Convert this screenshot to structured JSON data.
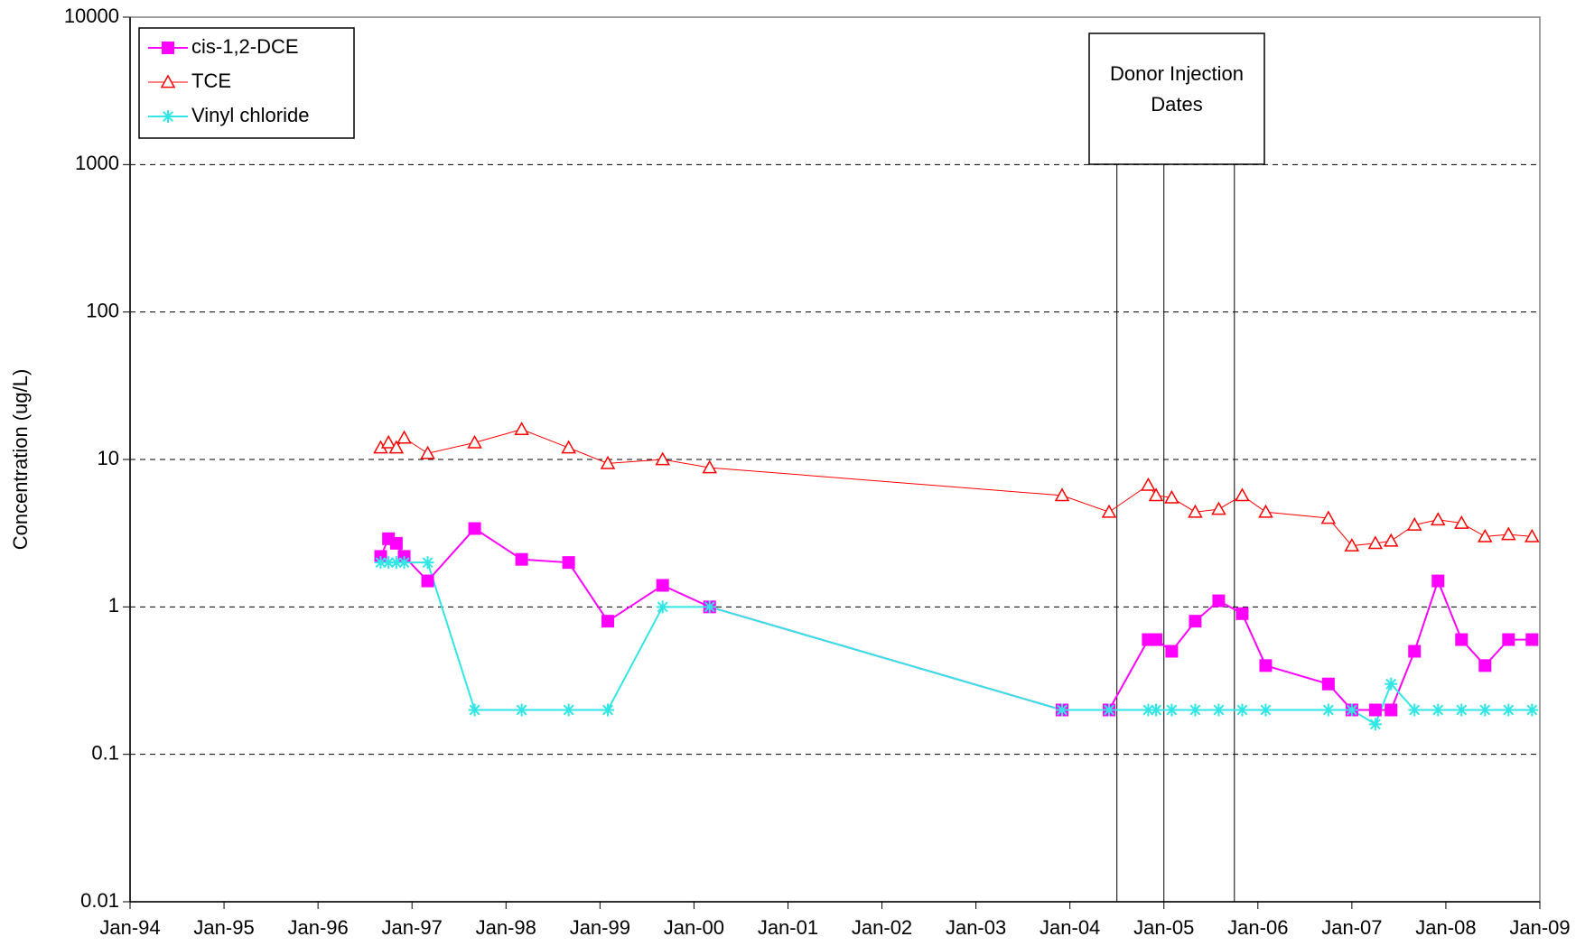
{
  "chart_data": {
    "type": "line",
    "y_label": "Concentration (ug/L)",
    "log_scale": true,
    "grid": true,
    "legend": "upper left",
    "x": [
      "1996-09",
      "1996-10",
      "1996-11",
      "1996-12",
      "1997-03",
      "1997-09",
      "1998-03",
      "1998-09",
      "1999-02",
      "1999-09",
      "2000-03",
      "2003-12",
      "2004-06",
      "2004-11",
      "2004-12",
      "2005-02",
      "2005-05",
      "2005-08",
      "2005-11",
      "2006-02",
      "2006-10",
      "2007-01",
      "2007-04",
      "2007-06",
      "2007-09",
      "2007-12",
      "2008-03",
      "2008-06",
      "2008-09",
      "2008-12"
    ],
    "series": [
      {
        "name": "cis-1,2-DCE",
        "color": "#ff00ff",
        "marker": "square",
        "values": [
          2.2,
          2.9,
          2.7,
          2.2,
          1.5,
          3.4,
          2.1,
          2.0,
          0.8,
          1.4,
          1.0,
          0.2,
          0.2,
          0.6,
          0.6,
          0.5,
          0.8,
          1.1,
          0.9,
          0.4,
          0.3,
          0.2,
          0.2,
          0.2,
          0.5,
          1.5,
          0.6,
          0.4,
          0.6,
          0.6
        ]
      },
      {
        "name": "TCE",
        "color": "#ff0000",
        "marker": "triangle",
        "values": [
          12,
          13,
          12,
          14,
          11,
          13,
          16,
          12,
          9.4,
          10,
          8.8,
          5.7,
          4.4,
          6.7,
          5.7,
          5.5,
          4.4,
          4.6,
          5.7,
          4.4,
          4.0,
          2.6,
          2.7,
          2.8,
          3.6,
          3.9,
          3.7,
          3.0,
          3.1,
          3.0
        ]
      },
      {
        "name": "Vinyl chloride",
        "color": "#33e6e6",
        "marker": "asterisk",
        "values": [
          2,
          2,
          2,
          2,
          2,
          0.2,
          0.2,
          0.2,
          0.2,
          1,
          1,
          0.2,
          0.2,
          0.2,
          0.2,
          0.2,
          0.2,
          0.2,
          0.2,
          0.2,
          0.2,
          0.2,
          0.16,
          0.3,
          0.2,
          0.2,
          0.2,
          0.2,
          0.2,
          0.2
        ]
      }
    ],
    "xlim": [
      "1994-01",
      "2009-01"
    ],
    "xticks": [
      {
        "value": "1994-01",
        "label": "Jan-94"
      },
      {
        "value": "1995-01",
        "label": "Jan-95"
      },
      {
        "value": "1996-01",
        "label": "Jan-96"
      },
      {
        "value": "1997-01",
        "label": "Jan-97"
      },
      {
        "value": "1998-01",
        "label": "Jan-98"
      },
      {
        "value": "1999-01",
        "label": "Jan-99"
      },
      {
        "value": "2000-01",
        "label": "Jan-00"
      },
      {
        "value": "2001-01",
        "label": "Jan-01"
      },
      {
        "value": "2002-01",
        "label": "Jan-02"
      },
      {
        "value": "2003-01",
        "label": "Jan-03"
      },
      {
        "value": "2004-01",
        "label": "Jan-04"
      },
      {
        "value": "2005-01",
        "label": "Jan-05"
      },
      {
        "value": "2006-01",
        "label": "Jan-06"
      },
      {
        "value": "2007-01",
        "label": "Jan-07"
      },
      {
        "value": "2008-01",
        "label": "Jan-08"
      },
      {
        "value": "2009-01",
        "label": "Jan-09"
      }
    ],
    "ylim": [
      0.01,
      10000
    ],
    "yticks": [
      0.01,
      0.1,
      1,
      10,
      100,
      1000,
      10000
    ],
    "annotation": {
      "text": "Donor Injection Dates",
      "x": [
        "2004-07",
        "2005-01",
        "2005-10"
      ]
    }
  }
}
